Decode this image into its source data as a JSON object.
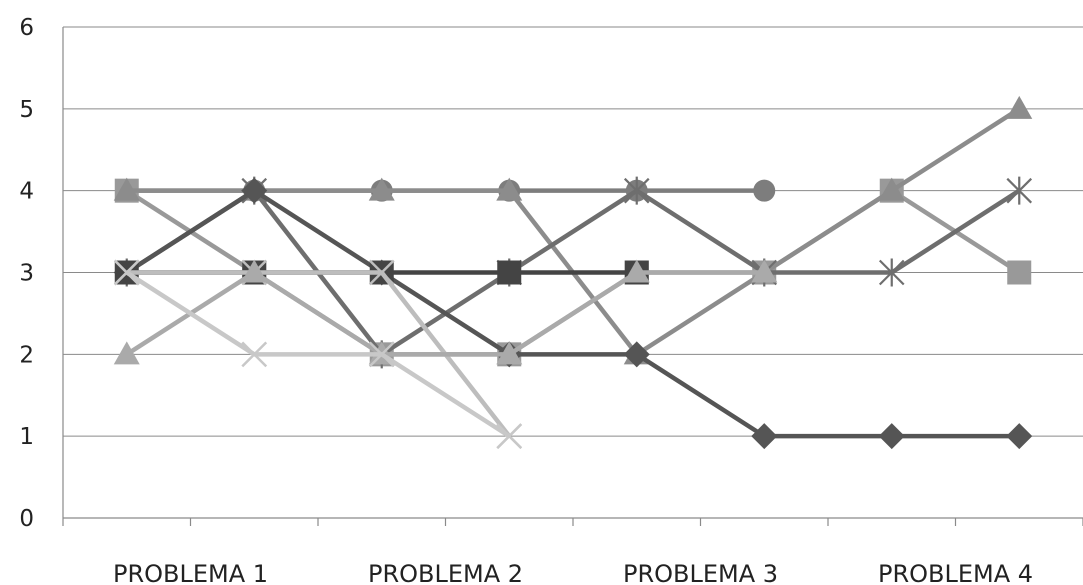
{
  "chart_data": {
    "type": "line",
    "categories": [
      "PROBLEMA 1",
      "PROBLEMA 2",
      "PROBLEMA 3",
      "PROBLEMA 4"
    ],
    "x": [
      1,
      2,
      3,
      4,
      5,
      6,
      7,
      8
    ],
    "ylim": [
      0,
      6
    ],
    "yticks": [
      0,
      1,
      2,
      3,
      4,
      5,
      6
    ],
    "grid": true,
    "legend": "none",
    "series": [
      {
        "color": "#7d7d7d",
        "marker": "circle",
        "values": [
          4,
          4,
          4,
          4,
          4,
          4,
          null,
          null
        ]
      },
      {
        "color": "#999999",
        "marker": "square",
        "values": [
          4,
          3,
          2,
          2,
          3,
          3,
          4,
          3
        ]
      },
      {
        "color": "#8c8c8c",
        "marker": "triangle",
        "values": [
          4,
          4,
          4,
          4,
          2,
          3,
          4,
          5
        ]
      },
      {
        "color": "#6e6e6e",
        "marker": "star",
        "values": [
          3,
          4,
          2,
          3,
          4,
          3,
          3,
          4
        ]
      },
      {
        "color": "#555555",
        "marker": "diamond",
        "values": [
          3,
          4,
          3,
          2,
          2,
          1,
          1,
          1
        ]
      },
      {
        "color": "#444444",
        "marker": "square",
        "values": [
          3,
          3,
          3,
          3,
          3,
          null,
          null,
          null
        ]
      },
      {
        "color": "#bdbdbd",
        "marker": "x",
        "values": [
          3,
          3,
          3,
          1,
          null,
          null,
          null,
          null
        ]
      },
      {
        "color": "#aaaaaa",
        "marker": "triangle",
        "values": [
          2,
          3,
          2,
          2,
          3,
          3,
          null,
          null
        ]
      },
      {
        "color": "#c8c8c8",
        "marker": "x",
        "values": [
          3,
          2,
          2,
          1,
          null,
          null,
          null,
          null
        ]
      }
    ]
  }
}
